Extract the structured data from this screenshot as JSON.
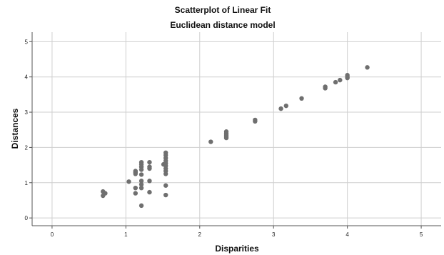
{
  "chart_data": {
    "type": "scatter",
    "title": "Scatterplot of Linear Fit",
    "subtitle": "Euclidean distance model",
    "xlabel": "Disparities",
    "ylabel": "Distances",
    "xlim": [
      -0.27,
      5.27
    ],
    "ylim": [
      -0.22,
      5.27
    ],
    "xticks": [
      "0",
      "1",
      "2",
      "3",
      "4",
      "5"
    ],
    "yticks": [
      "0",
      "1",
      "2",
      "3",
      "4",
      "5"
    ],
    "grid": true,
    "point_color": "#6f6f6f",
    "grid_color": "#cfcfcf",
    "points": [
      {
        "x": 0.69,
        "y": 0.75
      },
      {
        "x": 0.69,
        "y": 0.63
      },
      {
        "x": 0.72,
        "y": 0.7
      },
      {
        "x": 1.04,
        "y": 1.03
      },
      {
        "x": 1.13,
        "y": 1.33
      },
      {
        "x": 1.13,
        "y": 1.29
      },
      {
        "x": 1.13,
        "y": 1.25
      },
      {
        "x": 1.13,
        "y": 0.85
      },
      {
        "x": 1.13,
        "y": 0.7
      },
      {
        "x": 1.21,
        "y": 1.58
      },
      {
        "x": 1.21,
        "y": 1.52
      },
      {
        "x": 1.21,
        "y": 1.45
      },
      {
        "x": 1.21,
        "y": 1.37
      },
      {
        "x": 1.21,
        "y": 1.23
      },
      {
        "x": 1.21,
        "y": 1.05
      },
      {
        "x": 1.21,
        "y": 0.95
      },
      {
        "x": 1.21,
        "y": 0.85
      },
      {
        "x": 1.21,
        "y": 0.35
      },
      {
        "x": 1.32,
        "y": 1.58
      },
      {
        "x": 1.32,
        "y": 1.45
      },
      {
        "x": 1.32,
        "y": 1.4
      },
      {
        "x": 1.32,
        "y": 1.05
      },
      {
        "x": 1.32,
        "y": 0.73
      },
      {
        "x": 1.51,
        "y": 1.52
      },
      {
        "x": 1.54,
        "y": 1.85
      },
      {
        "x": 1.54,
        "y": 1.78
      },
      {
        "x": 1.54,
        "y": 1.7
      },
      {
        "x": 1.54,
        "y": 1.62
      },
      {
        "x": 1.54,
        "y": 1.55
      },
      {
        "x": 1.54,
        "y": 1.48
      },
      {
        "x": 1.54,
        "y": 1.4
      },
      {
        "x": 1.54,
        "y": 1.33
      },
      {
        "x": 1.54,
        "y": 1.25
      },
      {
        "x": 1.54,
        "y": 0.92
      },
      {
        "x": 1.54,
        "y": 0.65
      },
      {
        "x": 2.15,
        "y": 2.16
      },
      {
        "x": 2.36,
        "y": 2.45
      },
      {
        "x": 2.36,
        "y": 2.4
      },
      {
        "x": 2.36,
        "y": 2.35
      },
      {
        "x": 2.36,
        "y": 2.3
      },
      {
        "x": 2.36,
        "y": 2.27
      },
      {
        "x": 2.75,
        "y": 2.78
      },
      {
        "x": 2.75,
        "y": 2.74
      },
      {
        "x": 3.1,
        "y": 3.1
      },
      {
        "x": 3.17,
        "y": 3.18
      },
      {
        "x": 3.38,
        "y": 3.39
      },
      {
        "x": 3.7,
        "y": 3.72
      },
      {
        "x": 3.7,
        "y": 3.68
      },
      {
        "x": 3.84,
        "y": 3.85
      },
      {
        "x": 3.9,
        "y": 3.91
      },
      {
        "x": 4.0,
        "y": 4.05
      },
      {
        "x": 4.0,
        "y": 4.0
      },
      {
        "x": 4.0,
        "y": 3.97
      },
      {
        "x": 4.27,
        "y": 4.27
      }
    ]
  }
}
